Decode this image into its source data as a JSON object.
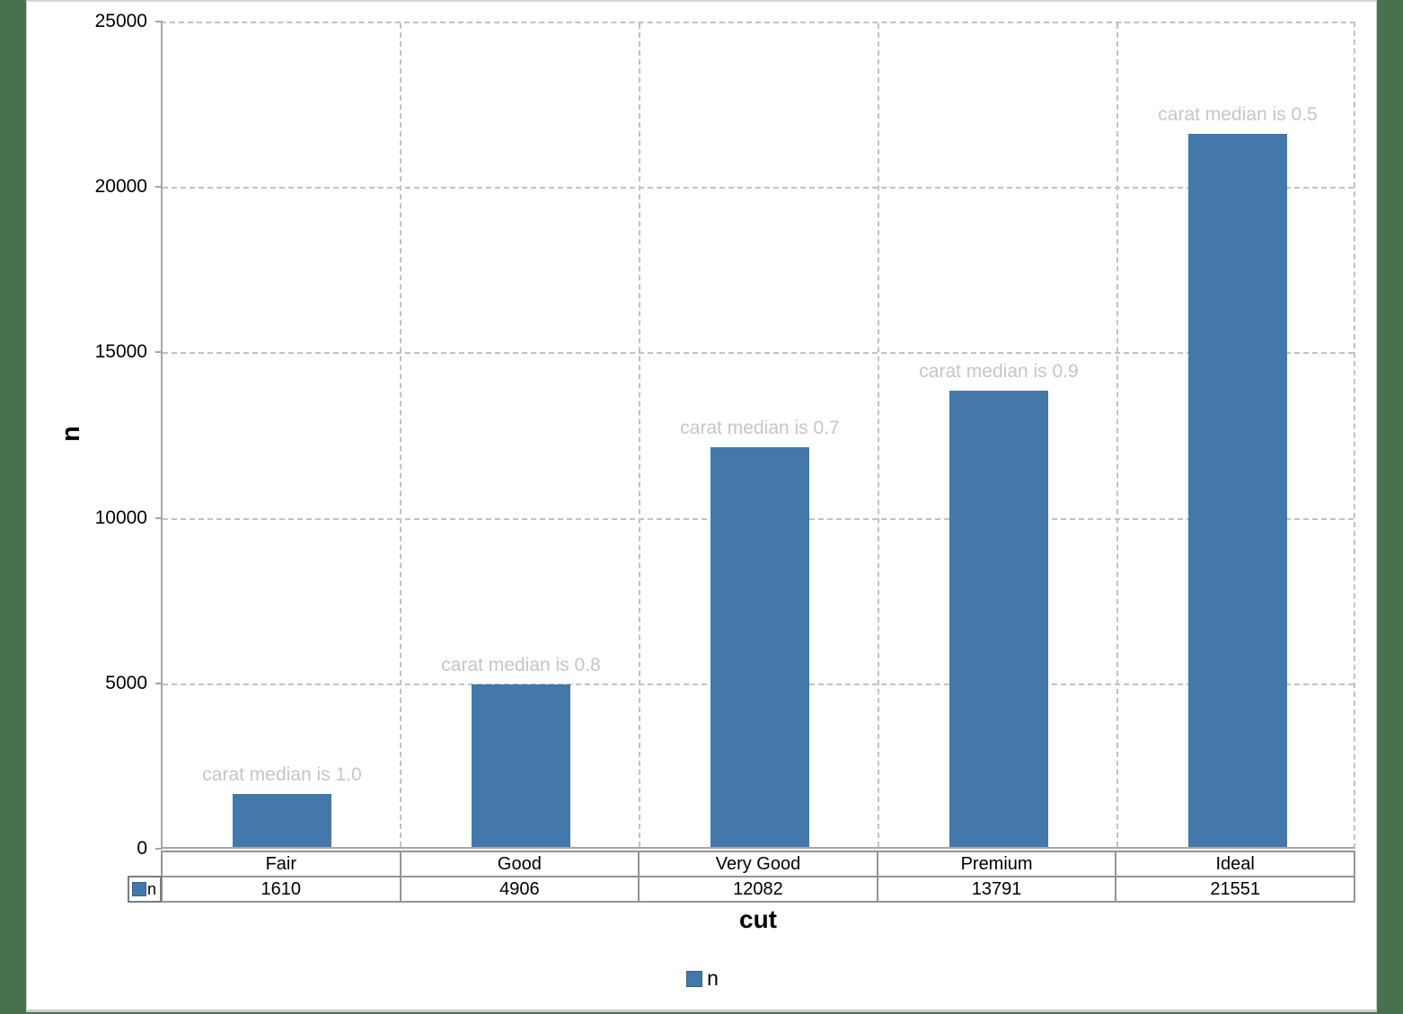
{
  "page": {
    "background_color": "#49714E",
    "canvas_color": "#FFFFFF"
  },
  "chart_data": {
    "type": "bar",
    "title": "",
    "categories": [
      "Fair",
      "Good",
      "Very Good",
      "Premium",
      "Ideal"
    ],
    "series": [
      {
        "name": "n",
        "values": [
          1610,
          4906,
          12082,
          13791,
          21551
        ],
        "color": "#4478AB"
      }
    ],
    "bar_annotations": [
      "carat median is 1.0",
      "carat median is 0.8",
      "carat median is 0.7",
      "carat median is 0.9",
      "carat median is 0.5"
    ],
    "annotation_color": "#C6C6C6",
    "xlabel": "cut",
    "ylabel": "n",
    "ylim": [
      0,
      25000
    ],
    "yticks": [
      0,
      5000,
      10000,
      15000,
      20000,
      25000
    ],
    "grid": true,
    "gridline_style": "dashed",
    "legend": {
      "position": "bottom",
      "entries": [
        "n"
      ]
    },
    "data_table": {
      "shown": true,
      "row_header": "n"
    }
  }
}
